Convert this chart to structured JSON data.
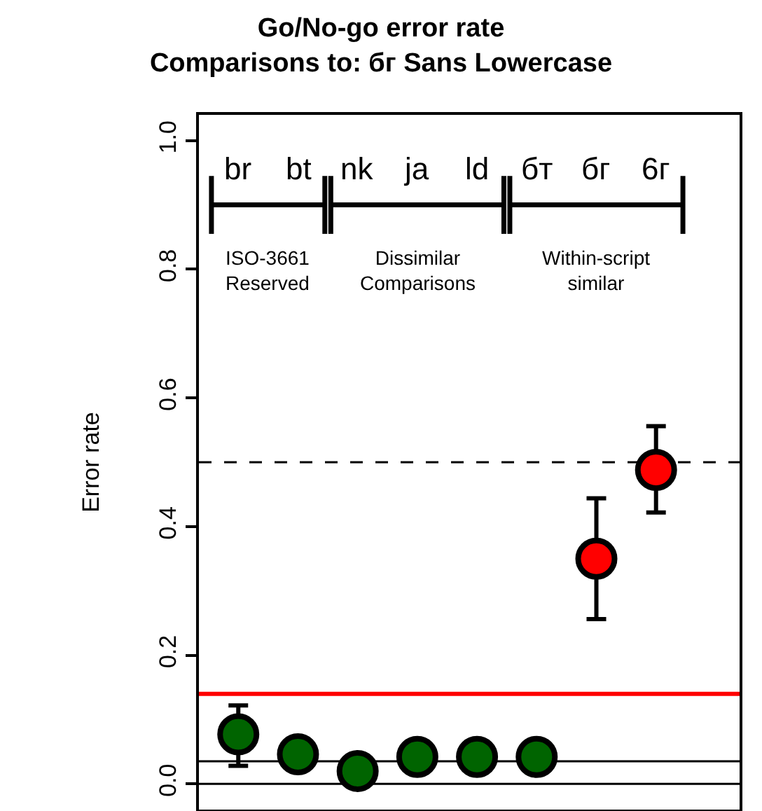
{
  "chart_data": {
    "type": "scatter",
    "title": "Go/No-go error rate\nComparisons to: бг Sans Lowercase",
    "ylabel": "Error rate",
    "categories": [
      "br",
      "bt",
      "nk",
      "ja",
      "ld",
      "бт",
      "бг",
      "6г"
    ],
    "values": [
      0.077,
      0.046,
      0.02,
      0.042,
      0.042,
      0.042,
      0.35,
      0.488
    ],
    "errors": [
      [
        0.028,
        0.122
      ],
      0.025,
      null,
      0.025,
      0.025,
      0.025,
      [
        0.256,
        0.444
      ],
      [
        0.422,
        0.556
      ]
    ],
    "colors": [
      "#006400",
      "#006400",
      "#006400",
      "#006400",
      "#006400",
      "#006400",
      "#ff0000",
      "#ff0000"
    ],
    "marker": "circle",
    "ylim": [
      -0.04,
      1.04
    ],
    "yticks": [
      {
        "value": 0,
        "label": "0.0"
      },
      {
        "value": 0.2,
        "label": "0.2"
      },
      {
        "value": 0.4,
        "label": "0.4"
      },
      {
        "value": 0.6,
        "label": "0.6"
      },
      {
        "value": 0.8,
        "label": "0.8"
      },
      {
        "value": 1,
        "label": "1.0"
      }
    ],
    "ref_lines": [
      {
        "axis": "y",
        "value": 0.5,
        "color": "#000000",
        "line_style": "dashed"
      },
      {
        "axis": "y",
        "value": 0.14,
        "color": "#ff0000",
        "line_style": "solid"
      },
      {
        "axis": "y",
        "value": 0.035,
        "color": "#000000",
        "line_style": "solid"
      },
      {
        "axis": "y",
        "value": 0,
        "color": "#000000",
        "line_style": "solid"
      }
    ],
    "annotations": [
      "ISO-3661\nReserved",
      "Dissimilar\nComparisons",
      "Within-script\nsimilar"
    ],
    "grid": false
  }
}
